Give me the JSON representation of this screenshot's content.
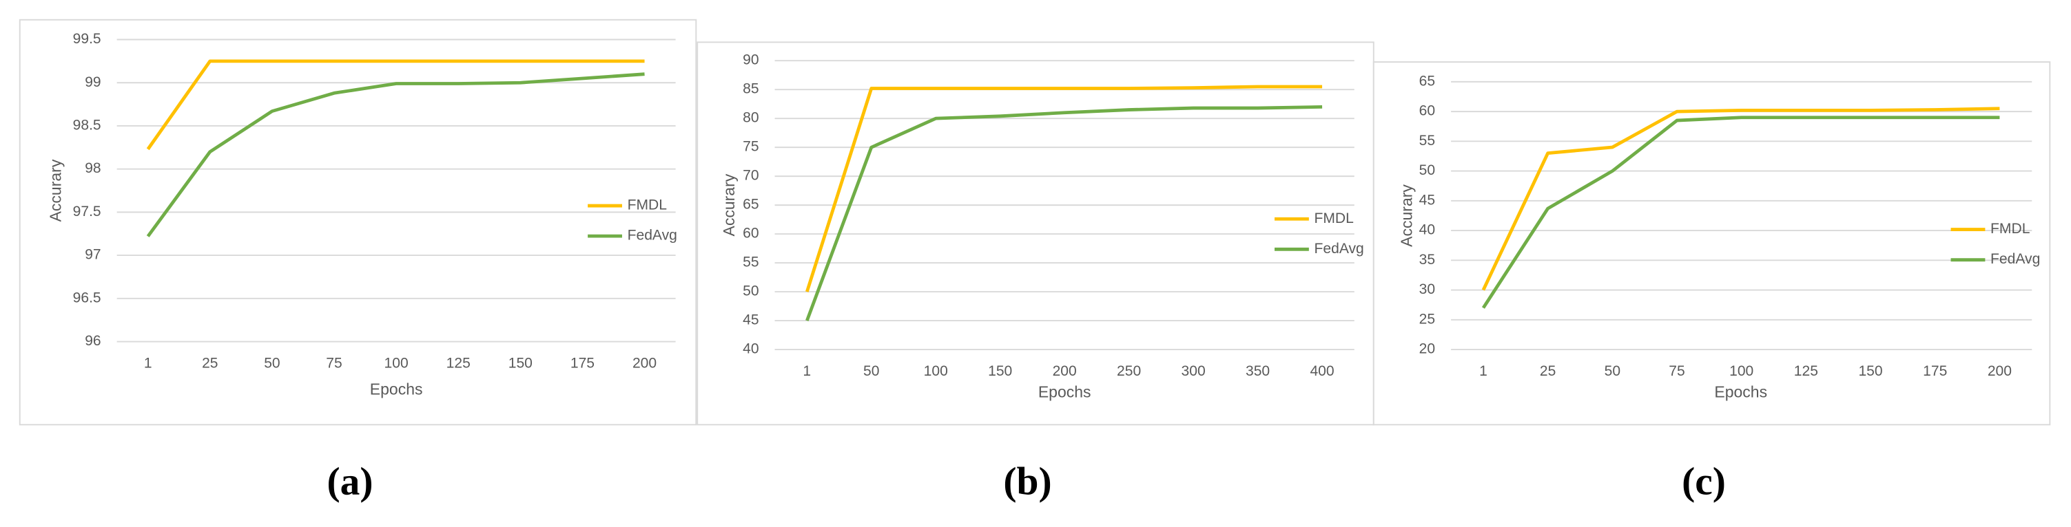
{
  "chart_data": [
    {
      "type": "line",
      "caption": "(a)",
      "y_label": "Accurary",
      "x_label": "Epochs",
      "categories": [
        "1",
        "25",
        "50",
        "75",
        "100",
        "125",
        "150",
        "175",
        "200"
      ],
      "ylim": [
        96,
        99.5
      ],
      "yticks": [
        96,
        96.5,
        97,
        97.5,
        98,
        98.5,
        99,
        99.5
      ],
      "grid": true,
      "legend": "right",
      "series": [
        {
          "name": "FMDL",
          "color": "#FFC000",
          "values": [
            98.23,
            99.25,
            99.25,
            99.25,
            99.25,
            99.25,
            99.25,
            99.25,
            99.25
          ]
        },
        {
          "name": "FedAvg",
          "color": "#70AD47",
          "values": [
            97.22,
            98.2,
            98.67,
            98.88,
            98.99,
            98.99,
            99.0,
            99.05,
            99.1
          ]
        }
      ]
    },
    {
      "type": "line",
      "caption": "(b)",
      "y_label": "Accurary",
      "x_label": "Epochs",
      "categories": [
        "1",
        "50",
        "100",
        "150",
        "200",
        "250",
        "300",
        "350",
        "400"
      ],
      "ylim": [
        40,
        90
      ],
      "yticks": [
        40,
        45,
        50,
        55,
        60,
        65,
        70,
        75,
        80,
        85,
        90
      ],
      "grid": true,
      "legend": "right",
      "series": [
        {
          "name": "FMDL",
          "color": "#FFC000",
          "values": [
            50,
            85.2,
            85.2,
            85.2,
            85.2,
            85.2,
            85.3,
            85.5,
            85.5
          ]
        },
        {
          "name": "FedAvg",
          "color": "#70AD47",
          "values": [
            45,
            75,
            80,
            80.4,
            81,
            81.5,
            81.8,
            81.8,
            82
          ]
        }
      ]
    },
    {
      "type": "line",
      "caption": "(c)",
      "y_label": "Accurary",
      "x_label": "Epochs",
      "categories": [
        "1",
        "25",
        "50",
        "75",
        "100",
        "125",
        "150",
        "175",
        "200"
      ],
      "ylim": [
        20,
        65
      ],
      "yticks": [
        20,
        25,
        30,
        35,
        40,
        45,
        50,
        55,
        60,
        65
      ],
      "grid": true,
      "legend": "right",
      "series": [
        {
          "name": "FMDL",
          "color": "#FFC000",
          "values": [
            30,
            53,
            54,
            60,
            60.2,
            60.2,
            60.2,
            60.3,
            60.5
          ]
        },
        {
          "name": "FedAvg",
          "color": "#70AD47",
          "values": [
            27,
            43.7,
            50,
            58.5,
            59,
            59,
            59,
            59,
            59
          ]
        }
      ]
    }
  ]
}
